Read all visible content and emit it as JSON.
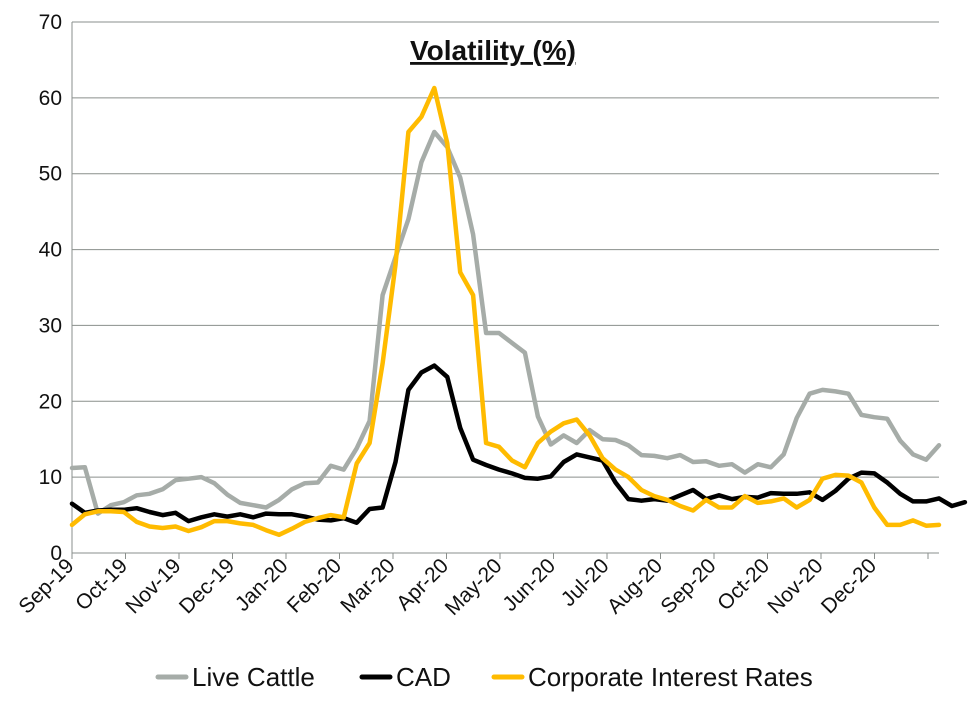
{
  "chart_data": {
    "type": "line",
    "title": "Volatility (%)",
    "xlabel": "",
    "ylabel": "",
    "ylim": [
      0,
      70
    ],
    "yticks": [
      0,
      10,
      20,
      30,
      40,
      50,
      60,
      70
    ],
    "xtick_labels": [
      "Sep-19",
      "Oct-19",
      "Nov-19",
      "Dec-19",
      "Jan-20",
      "Feb-20",
      "Mar-20",
      "Apr-20",
      "May-20",
      "Jun-20",
      "Jul-20",
      "Aug-20",
      "Sep-20",
      "Oct-20",
      "Nov-20",
      "Dec-20"
    ],
    "grid": "horizontal",
    "legend_position": "bottom",
    "x_start": "2019-09-01",
    "x_step": "weekly",
    "series": [
      {
        "name": "Live Cattle",
        "color": "#a6aca8",
        "values": [
          11.2,
          11.3,
          5.2,
          6.3,
          6.7,
          7.6,
          7.8,
          8.4,
          9.6,
          9.8,
          10.0,
          9.2,
          7.7,
          6.6,
          6.3,
          6.0,
          7.0,
          8.4,
          9.2,
          9.3,
          11.5,
          11.0,
          13.8,
          17.4,
          34.0,
          39.0,
          44.0,
          51.5,
          55.5,
          53.5,
          49.5,
          42.0,
          29.0,
          29.0,
          27.7,
          26.4,
          18.0,
          14.3,
          15.5,
          14.5,
          16.2,
          15.0,
          14.9,
          14.2,
          12.9,
          12.8,
          12.5,
          12.9,
          12.0,
          12.1,
          11.5,
          11.7,
          10.6,
          11.7,
          11.3,
          13.0,
          17.8,
          21.0,
          21.5,
          21.3,
          21.0,
          18.2,
          17.9,
          17.7,
          14.8,
          13.0,
          12.3,
          14.2
        ]
      },
      {
        "name": "CAD",
        "color": "#000000",
        "values": [
          6.5,
          5.3,
          5.6,
          5.7,
          5.7,
          5.9,
          5.4,
          5.0,
          5.3,
          4.2,
          4.7,
          5.1,
          4.8,
          5.1,
          4.7,
          5.2,
          5.1,
          5.1,
          4.8,
          4.4,
          4.3,
          4.6,
          4.0,
          5.8,
          6.0,
          12.0,
          21.5,
          23.8,
          24.7,
          23.2,
          16.5,
          12.3,
          11.6,
          11.0,
          10.5,
          9.9,
          9.8,
          10.1,
          12.0,
          13.0,
          12.6,
          12.2,
          9.3,
          7.1,
          6.9,
          7.1,
          6.9,
          7.6,
          8.3,
          7.1,
          7.6,
          7.1,
          7.4,
          7.3,
          7.9,
          7.8,
          7.8,
          8.0,
          7.0,
          8.2,
          9.8,
          10.6,
          10.5,
          9.3,
          7.8,
          6.8,
          6.8,
          7.2,
          6.2,
          6.7
        ]
      },
      {
        "name": "Corporate Interest Rates",
        "color": "#ffbb00",
        "values": [
          3.7,
          5.1,
          5.5,
          5.5,
          5.4,
          4.1,
          3.5,
          3.3,
          3.5,
          2.9,
          3.4,
          4.2,
          4.2,
          3.9,
          3.7,
          3.0,
          2.4,
          3.2,
          4.1,
          4.6,
          5.0,
          4.7,
          11.8,
          14.5,
          25.0,
          38.0,
          55.5,
          57.5,
          61.3,
          54.0,
          37.0,
          34.0,
          14.5,
          14.0,
          12.2,
          11.3,
          14.5,
          16.0,
          17.1,
          17.6,
          15.5,
          12.5,
          11.0,
          10.0,
          8.3,
          7.5,
          7.0,
          6.2,
          5.6,
          7.0,
          6.0,
          6.0,
          7.5,
          6.6,
          6.8,
          7.2,
          6.0,
          7.0,
          9.8,
          10.3,
          10.2,
          9.3,
          6.0,
          3.7,
          3.7,
          4.3,
          3.6,
          3.7
        ]
      }
    ]
  }
}
